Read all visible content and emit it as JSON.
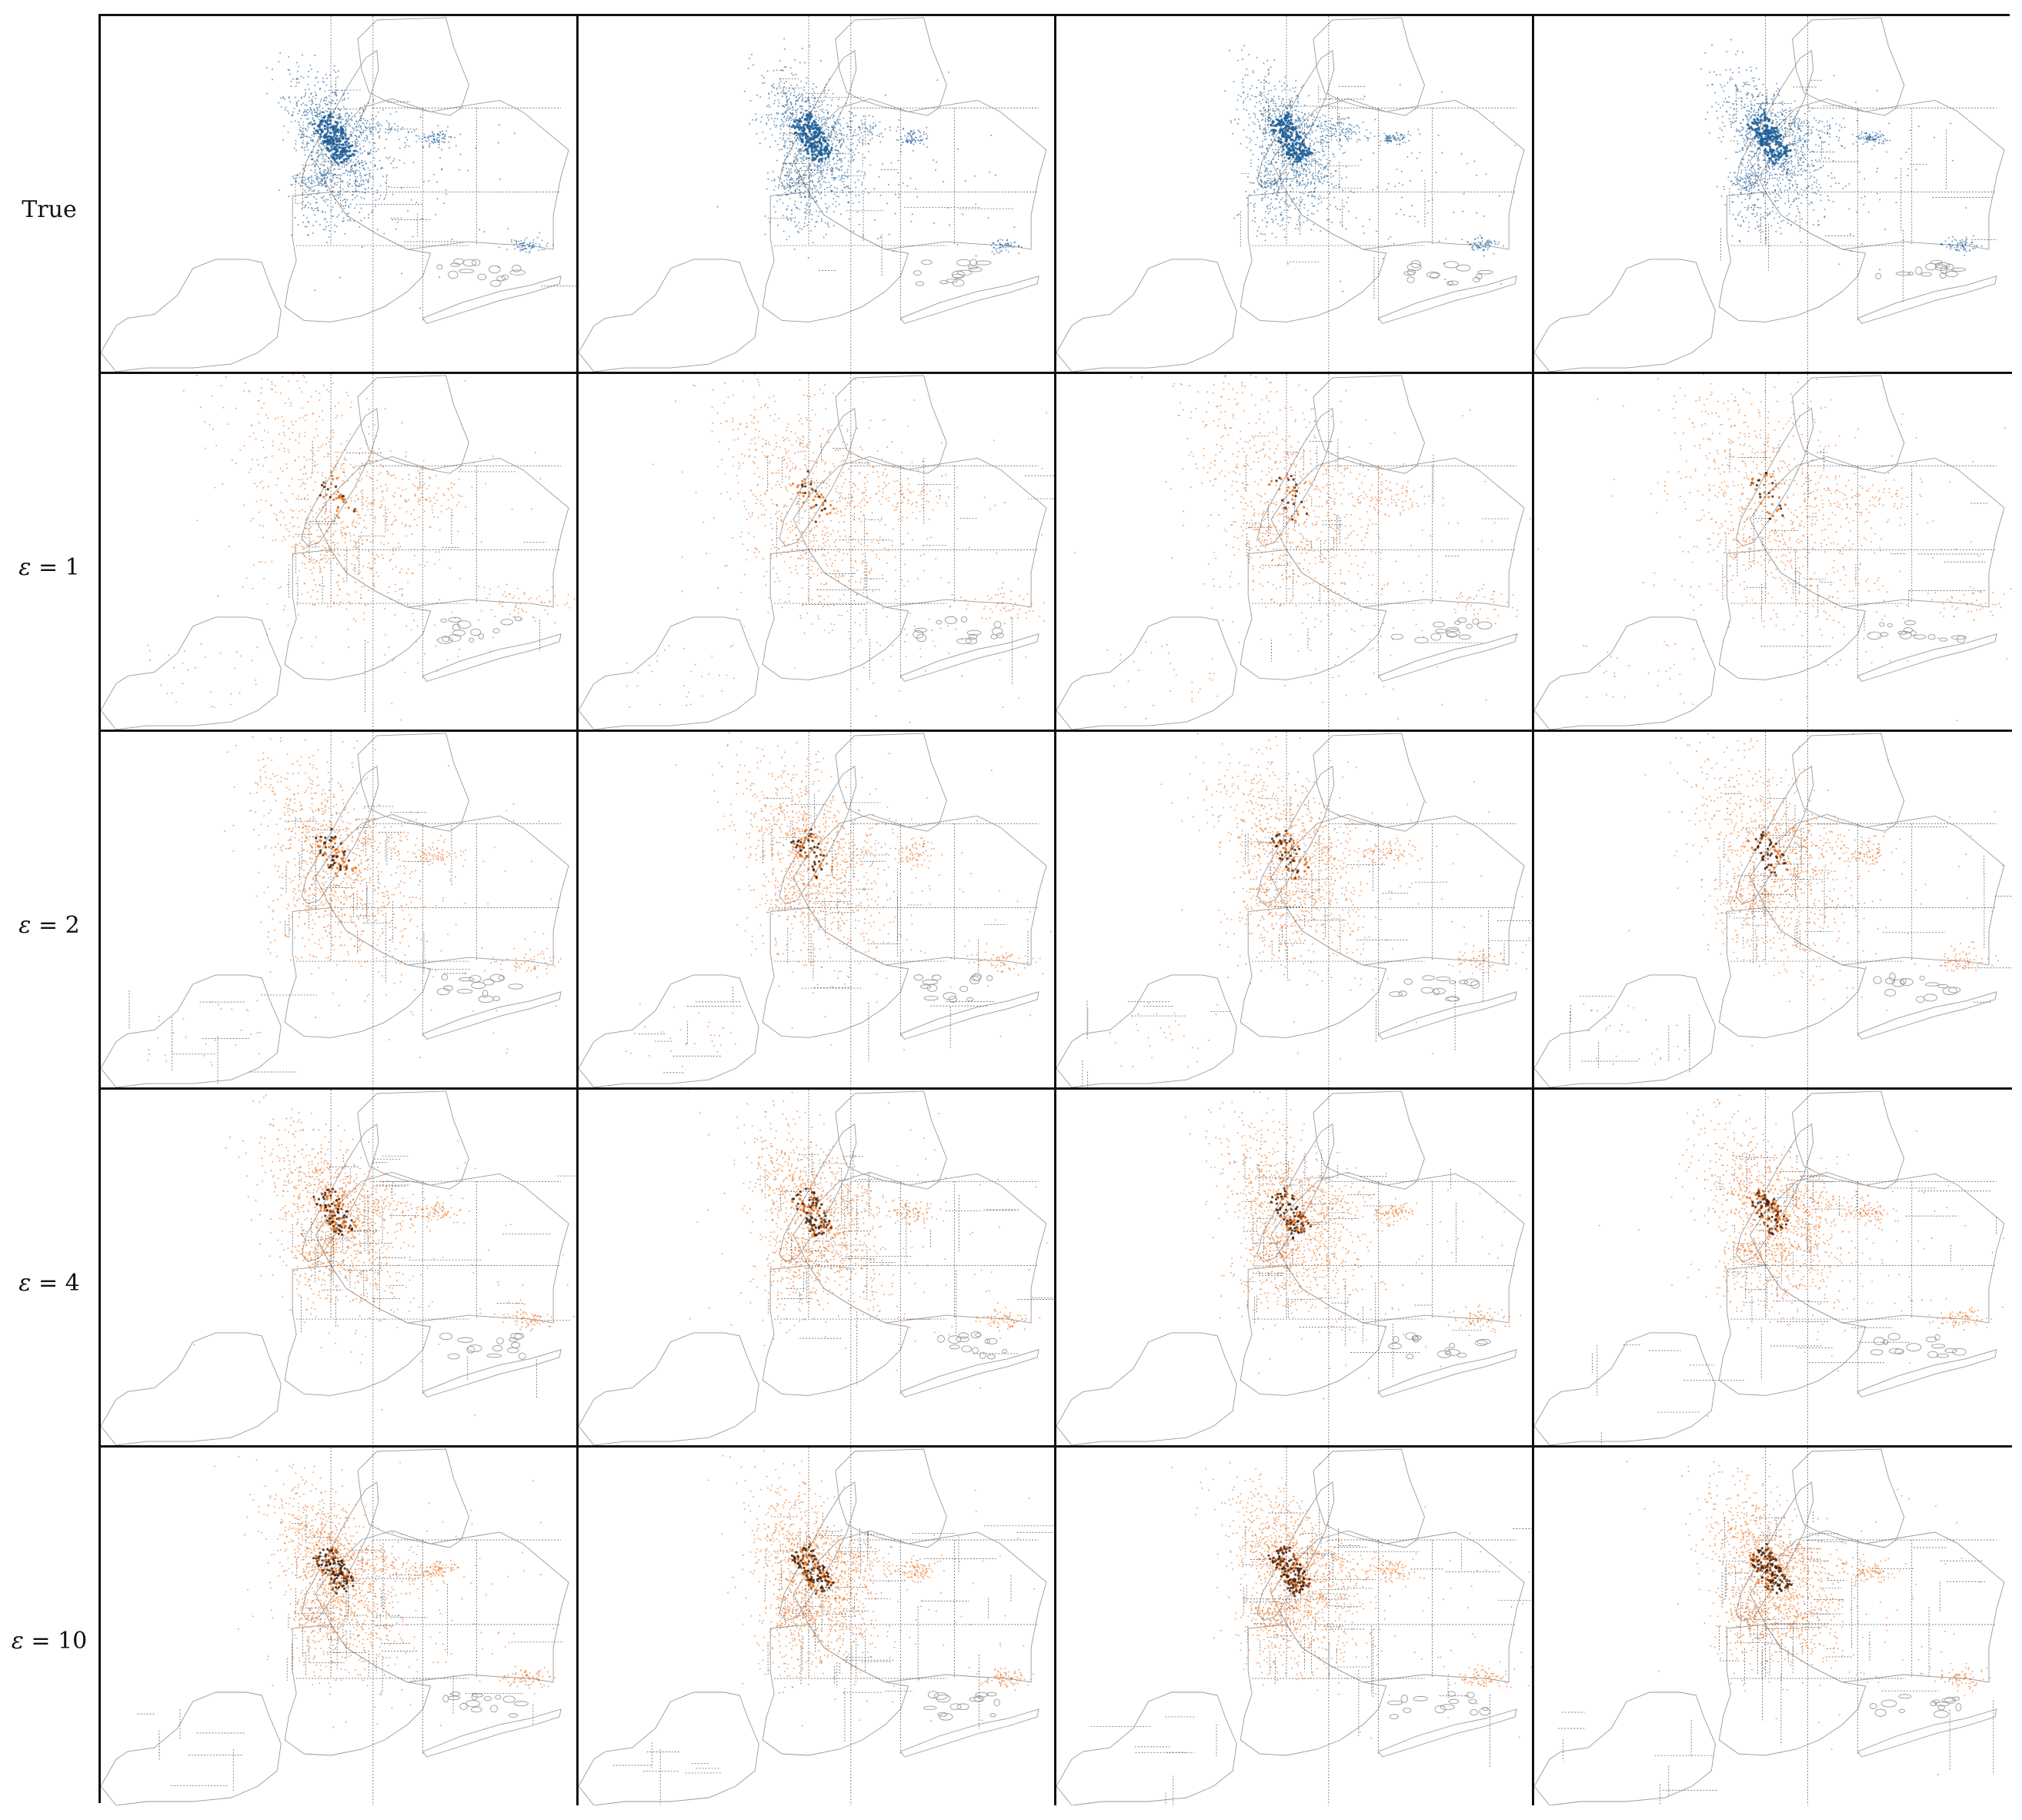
{
  "figure": {
    "rows": [
      {
        "label": "True",
        "kind": "true"
      },
      {
        "label_symbol": "ε",
        "label_rest": " = 1",
        "kind": "synthetic",
        "epsilon": 1
      },
      {
        "label_symbol": "ε",
        "label_rest": " = 2",
        "kind": "synthetic",
        "epsilon": 2
      },
      {
        "label_symbol": "ε",
        "label_rest": " = 4",
        "kind": "synthetic",
        "epsilon": 4
      },
      {
        "label_symbol": "ε",
        "label_rest": " = 10",
        "kind": "synthetic",
        "epsilon": 10
      }
    ],
    "columns": 4,
    "colors": {
      "true_points": "#1f5f96",
      "synthetic_points": "#e8701e",
      "synthetic_dense": "#4a1e05",
      "map_outline": "#9a9a9a",
      "partition_lines": "#555555",
      "panel_border": "#111111"
    },
    "icons": {
      "map": "nyc-boroughs-map"
    }
  }
}
